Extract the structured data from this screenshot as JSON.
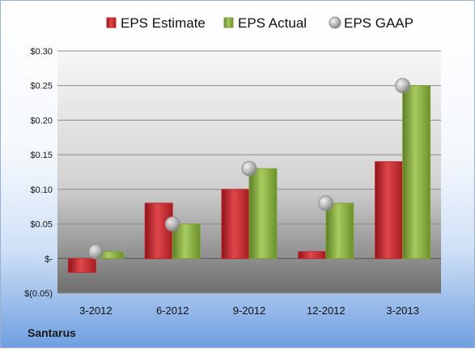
{
  "company": "Santarus",
  "colors": {
    "estimate": "#c0262b",
    "actual": "#7fa43a",
    "gaap": "#a9a9a9"
  },
  "chart_data": {
    "type": "bar",
    "categories": [
      "3-2012",
      "6-2012",
      "9-2012",
      "12-2012",
      "3-2013"
    ],
    "series": [
      {
        "name": "EPS Estimate",
        "type": "bar",
        "values": [
          -0.02,
          0.08,
          0.1,
          0.01,
          0.14
        ]
      },
      {
        "name": "EPS Actual",
        "type": "bar",
        "values": [
          0.01,
          0.05,
          0.13,
          0.08,
          0.25
        ]
      },
      {
        "name": "EPS GAAP",
        "type": "scatter",
        "values": [
          0.01,
          0.05,
          0.13,
          0.08,
          0.25
        ]
      }
    ],
    "ylim": [
      -0.05,
      0.3
    ],
    "yticks": [
      -0.05,
      0,
      0.05,
      0.1,
      0.15,
      0.2,
      0.25,
      0.3
    ],
    "ytick_labels": [
      "$(0.05)",
      "$-",
      "$0.05",
      "$0.10",
      "$0.15",
      "$0.20",
      "$0.25",
      "$0.30"
    ],
    "grid": true,
    "legend_position": "top"
  }
}
